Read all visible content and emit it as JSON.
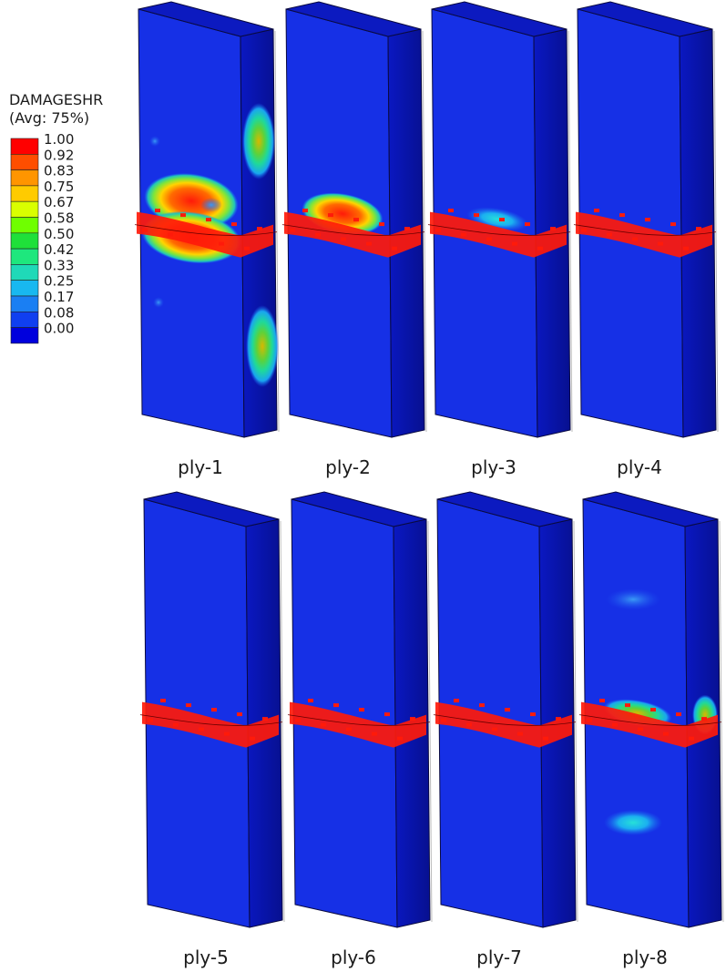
{
  "legend": {
    "title": "DAMAGESHR",
    "subtitle": "(Avg: 75%)",
    "values": [
      "1.00",
      "0.92",
      "0.83",
      "0.75",
      "0.67",
      "0.58",
      "0.50",
      "0.42",
      "0.33",
      "0.25",
      "0.17",
      "0.08",
      "0.00"
    ],
    "colors": [
      "#ff0000",
      "#ff4e00",
      "#ff9500",
      "#ffcb00",
      "#d9ff00",
      "#6fff00",
      "#1fe03a",
      "#1ee77d",
      "#1fd9b8",
      "#18b8f0",
      "#1a7ff3",
      "#103ff0",
      "#0000dd"
    ]
  },
  "colors": {
    "panel_front": "#1630e6",
    "panel_side": "#0a16b4",
    "panel_top": "#0c1ac0",
    "damage_red": "#ff1a0a"
  },
  "plies": [
    {
      "label": "ply-1",
      "damage": "heavy"
    },
    {
      "label": "ply-2",
      "damage": "moderate"
    },
    {
      "label": "ply-3",
      "damage": "light"
    },
    {
      "label": "ply-4",
      "damage": "band"
    },
    {
      "label": "ply-5",
      "damage": "band"
    },
    {
      "label": "ply-6",
      "damage": "band"
    },
    {
      "label": "ply-7",
      "damage": "band"
    },
    {
      "label": "ply-8",
      "damage": "patches"
    }
  ]
}
